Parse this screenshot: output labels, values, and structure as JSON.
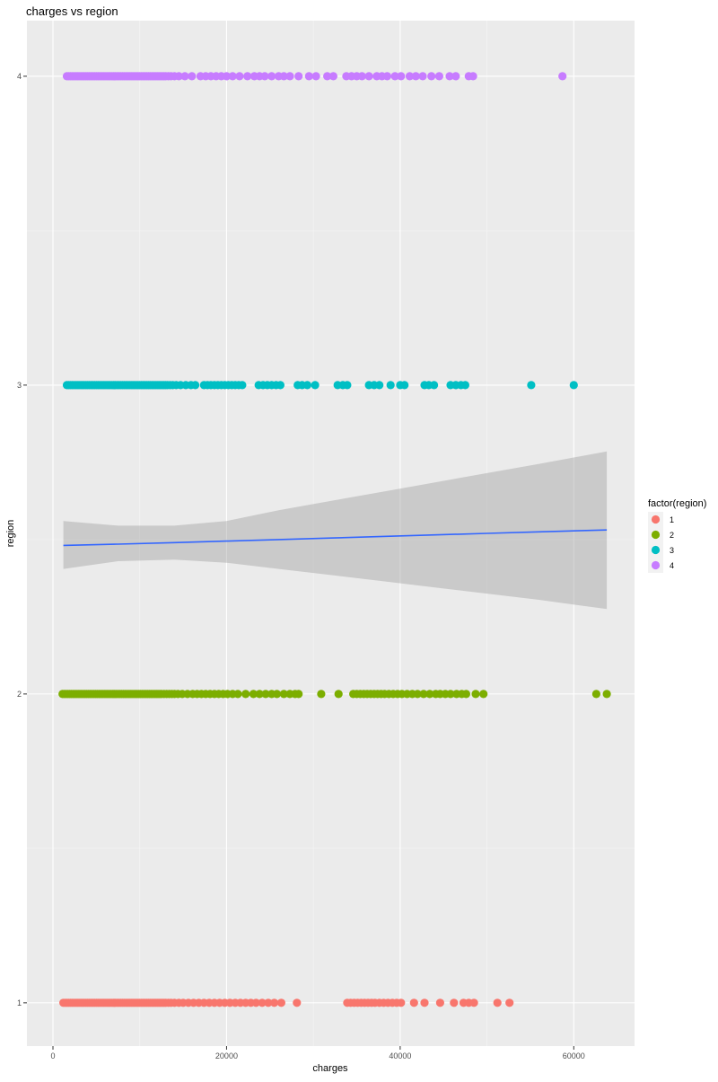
{
  "chart_data": {
    "type": "scatter",
    "title": "charges vs region",
    "xlabel": "charges",
    "ylabel": "region",
    "xlim": [
      -3000,
      67000
    ],
    "ylim": [
      0.86,
      4.18
    ],
    "x_ticks": [
      0,
      20000,
      40000,
      60000
    ],
    "y_ticks": [
      1,
      2,
      3,
      4
    ],
    "grid": true,
    "legend_title": "factor(region)",
    "legend_position": "right",
    "series": [
      {
        "name": "1",
        "color": "#F8766D",
        "y": 1,
        "x": [
          1200,
          1400,
          1600,
          1800,
          2000,
          2200,
          2400,
          2600,
          2800,
          3000,
          3200,
          3400,
          3600,
          3800,
          4000,
          4200,
          4400,
          4600,
          4800,
          5000,
          5200,
          5400,
          5600,
          5800,
          6000,
          6200,
          6400,
          6600,
          6800,
          7000,
          7200,
          7400,
          7600,
          7800,
          8000,
          8200,
          8400,
          8600,
          8800,
          9000,
          9200,
          9400,
          9600,
          9800,
          10000,
          10200,
          10400,
          10600,
          10800,
          11000,
          11200,
          11400,
          11600,
          11800,
          12000,
          12200,
          12400,
          12600,
          12800,
          13000,
          13300,
          13600,
          14000,
          14500,
          15000,
          15600,
          16200,
          16800,
          17400,
          18000,
          18600,
          19200,
          19800,
          20400,
          21000,
          21600,
          22200,
          22800,
          23400,
          24100,
          24800,
          25500,
          26300,
          28100,
          33900,
          34300,
          34700,
          35100,
          35500,
          35900,
          36300,
          36700,
          37100,
          37600,
          38100,
          38600,
          39100,
          39600,
          40100,
          41600,
          42800,
          44600,
          46200,
          47300,
          47900,
          48500,
          51200,
          52600
        ]
      },
      {
        "name": "2",
        "color": "#7CAE00",
        "y": 2,
        "x": [
          1100,
          1300,
          1500,
          1700,
          1900,
          2100,
          2300,
          2500,
          2700,
          2900,
          3100,
          3300,
          3500,
          3700,
          3900,
          4100,
          4300,
          4500,
          4700,
          4900,
          5100,
          5300,
          5500,
          5700,
          5900,
          6100,
          6300,
          6500,
          6700,
          6900,
          7100,
          7300,
          7500,
          7700,
          7900,
          8100,
          8300,
          8500,
          8700,
          8900,
          9100,
          9300,
          9500,
          9700,
          9900,
          10100,
          10300,
          10500,
          10700,
          10900,
          11100,
          11300,
          11500,
          11700,
          11900,
          12100,
          12300,
          12500,
          12800,
          13100,
          13400,
          13700,
          14000,
          14400,
          14900,
          15500,
          16100,
          16600,
          17100,
          17600,
          18100,
          18600,
          19100,
          19600,
          20100,
          20700,
          21300,
          22200,
          23100,
          23800,
          24500,
          25200,
          25800,
          26600,
          27300,
          27900,
          28300,
          30900,
          32900,
          34600,
          35000,
          35400,
          35800,
          36200,
          36600,
          37000,
          37400,
          37800,
          38200,
          38700,
          39200,
          39700,
          40200,
          40800,
          41400,
          42000,
          42700,
          43400,
          44100,
          44600,
          45200,
          45800,
          46500,
          47100,
          47600,
          48700,
          49600,
          62600,
          63800
        ]
      },
      {
        "name": "3",
        "color": "#00BFC4",
        "y": 3,
        "x": [
          1600,
          1800,
          2000,
          2200,
          2400,
          2600,
          2800,
          3000,
          3200,
          3400,
          3600,
          3800,
          4000,
          4200,
          4400,
          4600,
          4800,
          5000,
          5200,
          5400,
          5600,
          5800,
          6000,
          6200,
          6400,
          6600,
          6800,
          7000,
          7200,
          7400,
          7600,
          7800,
          8000,
          8200,
          8400,
          8600,
          8800,
          9000,
          9200,
          9400,
          9600,
          9800,
          10000,
          10200,
          10400,
          10600,
          10800,
          11000,
          11200,
          11400,
          11600,
          11800,
          12000,
          12200,
          12400,
          12600,
          12800,
          13000,
          13200,
          13500,
          13800,
          14200,
          14700,
          15300,
          15900,
          16400,
          17400,
          17800,
          18200,
          18600,
          19000,
          19400,
          19800,
          20200,
          20600,
          21000,
          21400,
          21800,
          23700,
          24200,
          24700,
          25200,
          25700,
          26200,
          28200,
          28700,
          29300,
          30200,
          32800,
          33400,
          33900,
          36400,
          37000,
          37600,
          38900,
          40000,
          40500,
          42800,
          43300,
          43900,
          45800,
          46400,
          47000,
          47500,
          55100,
          60000
        ]
      },
      {
        "name": "4",
        "color": "#C77CFF",
        "y": 4,
        "x": [
          1600,
          1800,
          2000,
          2200,
          2400,
          2600,
          2800,
          3000,
          3200,
          3400,
          3600,
          3800,
          4000,
          4200,
          4400,
          4600,
          4800,
          5000,
          5200,
          5400,
          5600,
          5800,
          6000,
          6200,
          6400,
          6600,
          6800,
          7000,
          7200,
          7400,
          7600,
          7800,
          8000,
          8200,
          8400,
          8600,
          8800,
          9000,
          9200,
          9400,
          9600,
          9800,
          10000,
          10200,
          10400,
          10600,
          10800,
          11000,
          11200,
          11400,
          11600,
          11800,
          12000,
          12200,
          12400,
          12600,
          12800,
          13000,
          13300,
          13600,
          14000,
          14500,
          15200,
          16000,
          17000,
          17600,
          18200,
          18800,
          19400,
          20000,
          20700,
          21500,
          22400,
          23200,
          23800,
          24400,
          25200,
          26000,
          26600,
          27300,
          28300,
          29500,
          30300,
          31600,
          32300,
          33800,
          34400,
          35000,
          35600,
          36400,
          37300,
          37900,
          38500,
          39400,
          40100,
          41100,
          41800,
          42600,
          43600,
          44500,
          45700,
          46400,
          47900,
          48400,
          58700
        ]
      }
    ],
    "smooth": {
      "color": "#3366FF",
      "fill": "#999999",
      "x": [
        1200,
        7500,
        14000,
        20000,
        26000,
        32000,
        38000,
        44000,
        50000,
        56000,
        63800
      ],
      "y": [
        2.481,
        2.485,
        2.49,
        2.495,
        2.5,
        2.505,
        2.51,
        2.515,
        2.52,
        2.525,
        2.531
      ],
      "ymin": [
        2.405,
        2.43,
        2.435,
        2.425,
        2.405,
        2.385,
        2.365,
        2.345,
        2.325,
        2.305,
        2.275
      ],
      "ymax": [
        2.56,
        2.545,
        2.545,
        2.56,
        2.595,
        2.625,
        2.655,
        2.685,
        2.715,
        2.745,
        2.785
      ]
    }
  }
}
